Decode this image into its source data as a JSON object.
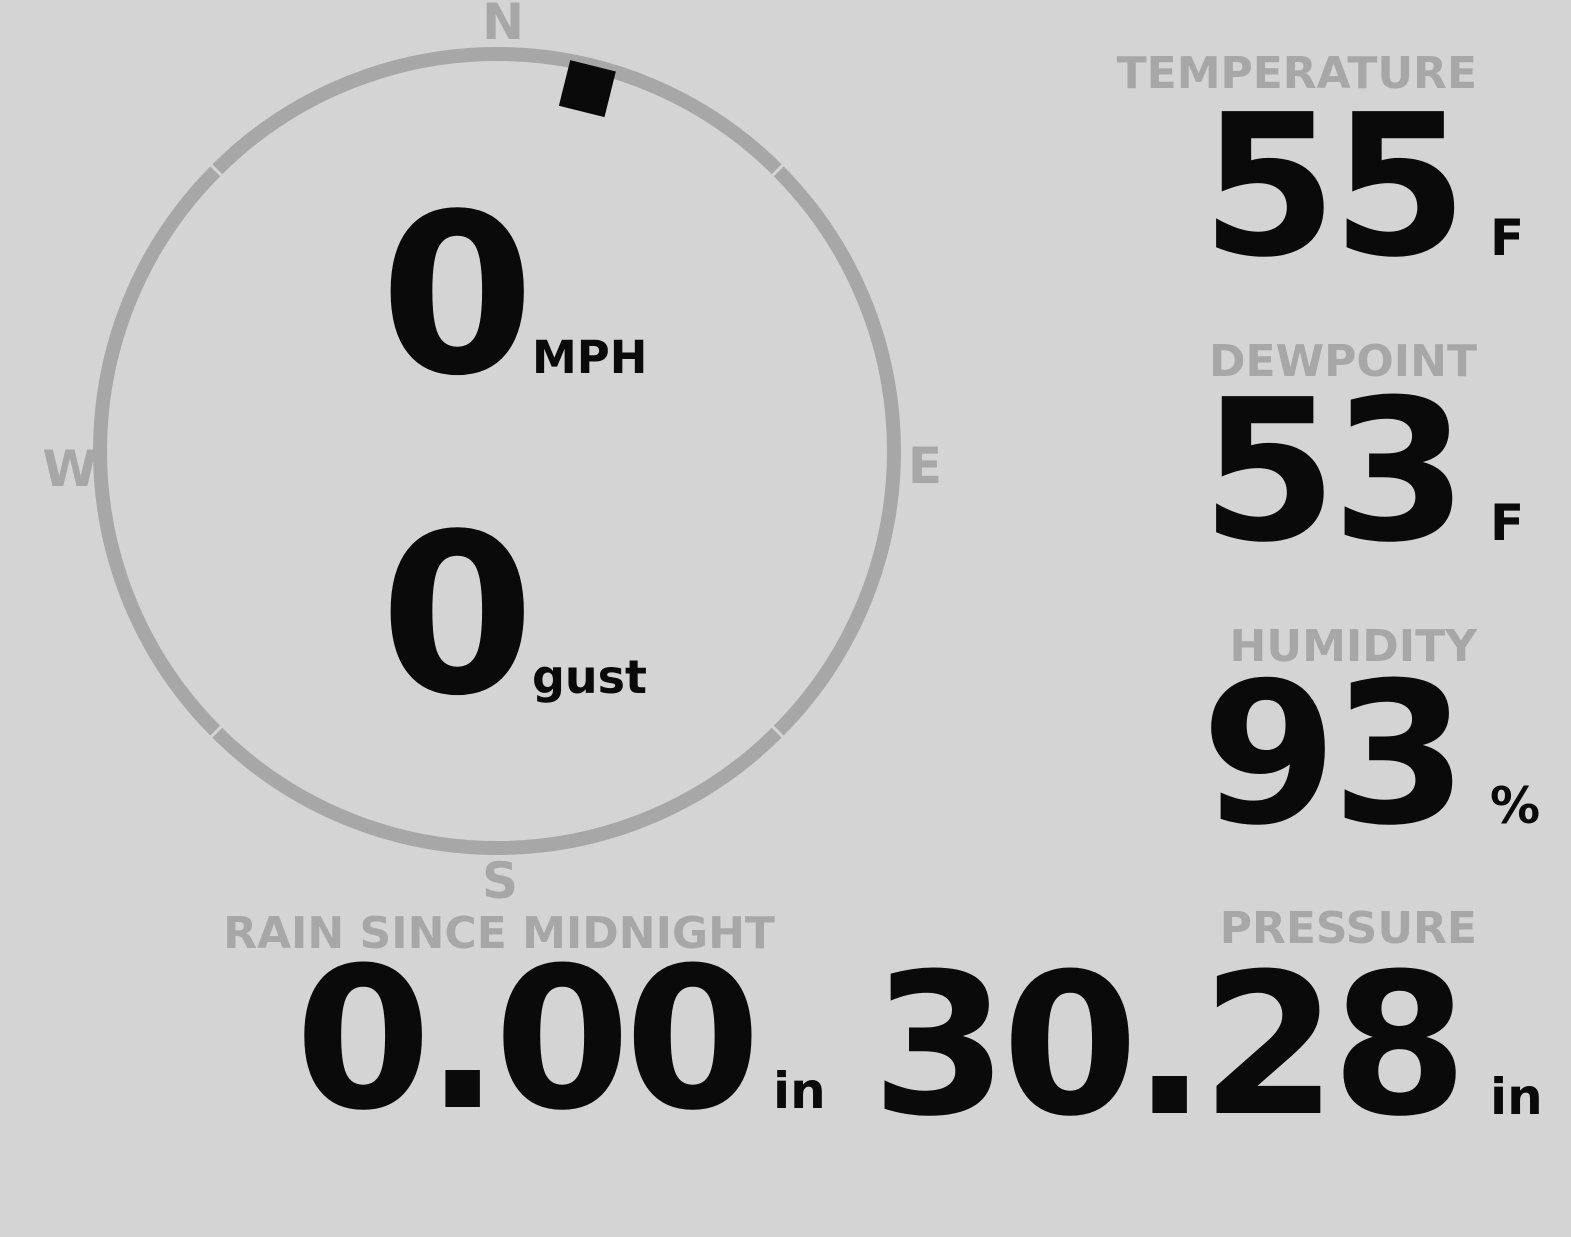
{
  "display": {
    "background_color": "#d4d4d4",
    "muted_color": "#a7a7a7",
    "value_color": "#0a0a0a"
  },
  "compass": {
    "cardinal_n": "N",
    "cardinal_e": "E",
    "cardinal_s": "S",
    "cardinal_w": "W",
    "wind_speed": "0",
    "wind_speed_unit": "MPH",
    "wind_gust": "0",
    "wind_gust_unit": "gust",
    "wind_direction_deg": 14
  },
  "metrics": {
    "temperature": {
      "label": "TEMPERATURE",
      "value": "55",
      "unit": "F"
    },
    "dewpoint": {
      "label": "DEWPOINT",
      "value": "53",
      "unit": "F"
    },
    "humidity": {
      "label": "HUMIDITY",
      "value": "93",
      "unit": "%"
    },
    "rain": {
      "label": "RAIN SINCE MIDNIGHT",
      "value": "0.00",
      "unit": "in"
    },
    "pressure": {
      "label": "PRESSURE",
      "value": "30.28",
      "unit": "in"
    }
  }
}
